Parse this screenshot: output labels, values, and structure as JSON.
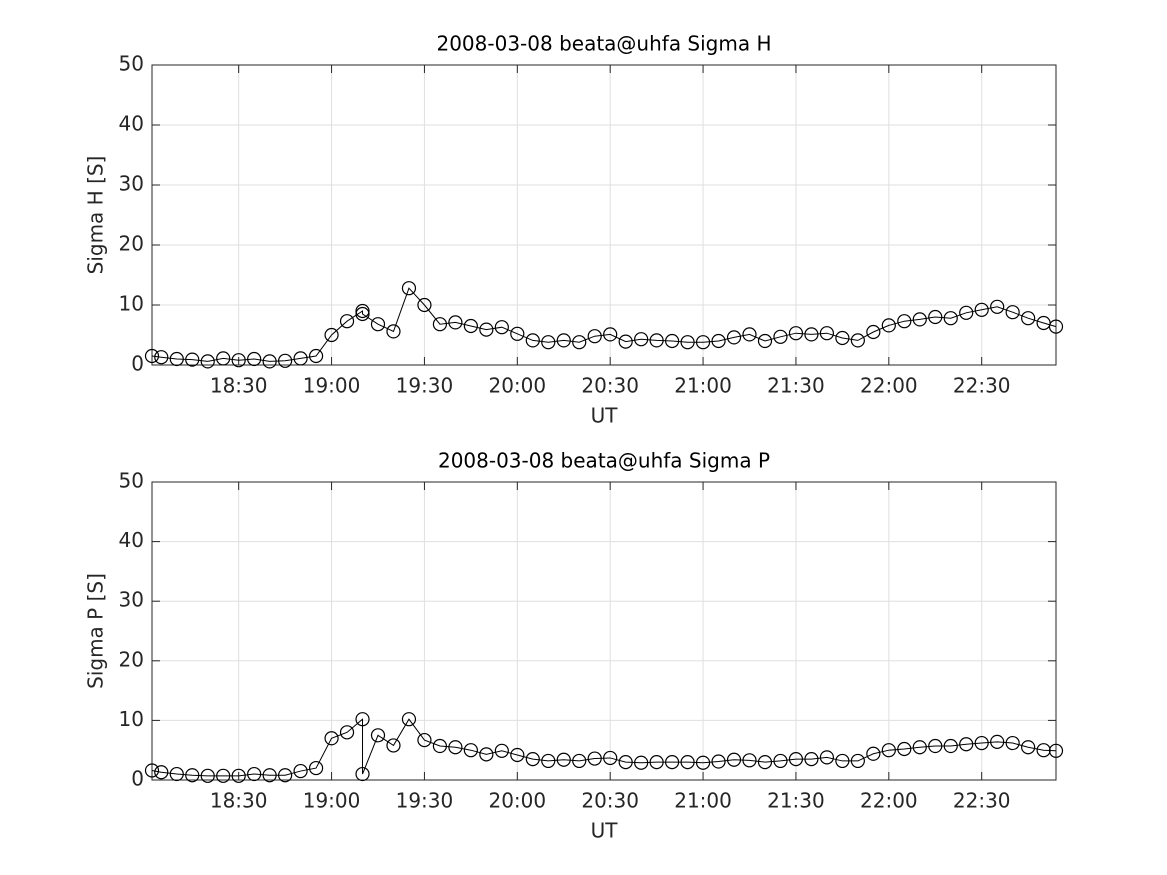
{
  "chart_data": [
    {
      "type": "line",
      "title": "2008-03-08  beata@uhfa Sigma H",
      "xlabel": "UT",
      "ylabel": "Sigma H [S]",
      "x": [
        "18:02",
        "18:05",
        "18:10",
        "18:15",
        "18:20",
        "18:25",
        "18:30",
        "18:35",
        "18:40",
        "18:45",
        "18:50",
        "18:55",
        "19:00",
        "19:05",
        "19:10",
        "19:10",
        "19:15",
        "19:20",
        "19:25",
        "19:30",
        "19:35",
        "19:40",
        "19:45",
        "19:50",
        "19:55",
        "20:00",
        "20:05",
        "20:10",
        "20:15",
        "20:20",
        "20:25",
        "20:30",
        "20:35",
        "20:40",
        "20:45",
        "20:50",
        "20:55",
        "21:00",
        "21:05",
        "21:10",
        "21:15",
        "21:20",
        "21:25",
        "21:30",
        "21:35",
        "21:40",
        "21:45",
        "21:50",
        "21:55",
        "22:00",
        "22:05",
        "22:10",
        "22:15",
        "22:20",
        "22:25",
        "22:30",
        "22:35",
        "22:40",
        "22:45",
        "22:50",
        "22:54"
      ],
      "series": [
        {
          "color": "#000000",
          "values": [
            1.5,
            1.3,
            1.0,
            0.9,
            0.6,
            1.1,
            0.8,
            1.0,
            0.6,
            0.7,
            1.1,
            1.5,
            5.0,
            7.3,
            9.0,
            8.5,
            6.8,
            5.6,
            12.8,
            10.0,
            6.8,
            7.1,
            6.5,
            5.9,
            6.3,
            5.2,
            4.1,
            3.8,
            4.1,
            3.8,
            4.8,
            5.1,
            3.9,
            4.3,
            4.1,
            4.0,
            3.8,
            3.8,
            4.0,
            4.6,
            5.1,
            4.0,
            4.7,
            5.3,
            5.1,
            5.3,
            4.5,
            4.1,
            5.5,
            6.6,
            7.3,
            7.6,
            8.0,
            7.8,
            8.7,
            9.2,
            9.7,
            8.8,
            7.8,
            7.0,
            6.4
          ]
        }
      ],
      "xlim": [
        "18:02",
        "22:54"
      ],
      "xticks": [
        "18:30",
        "19:00",
        "19:30",
        "20:00",
        "20:30",
        "21:00",
        "21:30",
        "22:00",
        "22:30"
      ],
      "ylim": [
        0,
        50
      ],
      "yticks": [
        0,
        10,
        20,
        30,
        40,
        50
      ],
      "grid": true
    },
    {
      "type": "line",
      "title": "2008-03-08  beata@uhfa Sigma P",
      "xlabel": "UT",
      "ylabel": "Sigma P [S]",
      "x": [
        "18:02",
        "18:05",
        "18:10",
        "18:15",
        "18:20",
        "18:25",
        "18:30",
        "18:35",
        "18:40",
        "18:45",
        "18:50",
        "18:55",
        "19:00",
        "19:05",
        "19:10",
        "19:10",
        "19:15",
        "19:20",
        "19:25",
        "19:30",
        "19:35",
        "19:40",
        "19:45",
        "19:50",
        "19:55",
        "20:00",
        "20:05",
        "20:10",
        "20:15",
        "20:20",
        "20:25",
        "20:30",
        "20:35",
        "20:40",
        "20:45",
        "20:50",
        "20:55",
        "21:00",
        "21:05",
        "21:10",
        "21:15",
        "21:20",
        "21:25",
        "21:30",
        "21:35",
        "21:40",
        "21:45",
        "21:50",
        "21:55",
        "22:00",
        "22:05",
        "22:10",
        "22:15",
        "22:20",
        "22:25",
        "22:30",
        "22:35",
        "22:40",
        "22:45",
        "22:50",
        "22:54"
      ],
      "series": [
        {
          "color": "#000000",
          "values": [
            1.6,
            1.3,
            1.0,
            0.8,
            0.7,
            0.7,
            0.7,
            1.0,
            0.8,
            0.8,
            1.5,
            2.0,
            7.0,
            8.0,
            10.2,
            1.0,
            7.5,
            5.8,
            10.2,
            6.7,
            5.7,
            5.5,
            5.0,
            4.3,
            4.9,
            4.2,
            3.5,
            3.2,
            3.4,
            3.2,
            3.6,
            3.7,
            3.0,
            2.9,
            3.0,
            3.0,
            3.0,
            2.9,
            3.1,
            3.4,
            3.3,
            3.0,
            3.2,
            3.5,
            3.5,
            3.8,
            3.2,
            3.2,
            4.4,
            5.0,
            5.2,
            5.5,
            5.7,
            5.7,
            6.0,
            6.2,
            6.4,
            6.2,
            5.5,
            5.0,
            4.9
          ]
        }
      ],
      "xlim": [
        "18:02",
        "22:54"
      ],
      "xticks": [
        "18:30",
        "19:00",
        "19:30",
        "20:00",
        "20:30",
        "21:00",
        "21:30",
        "22:00",
        "22:30"
      ],
      "ylim": [
        0,
        50
      ],
      "yticks": [
        0,
        10,
        20,
        30,
        40,
        50
      ],
      "grid": true
    }
  ]
}
